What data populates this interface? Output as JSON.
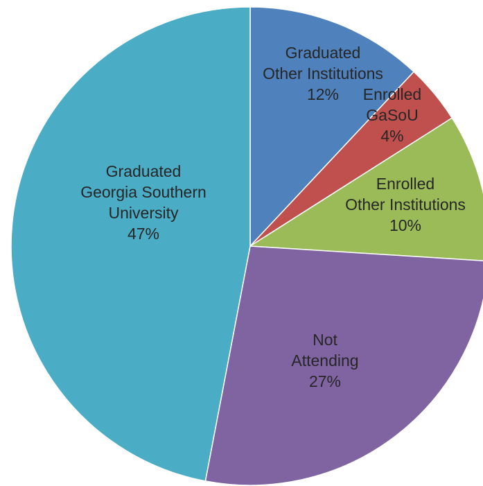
{
  "chart_data": {
    "type": "pie",
    "start_angle_deg": 0,
    "direction": "clockwise",
    "slices": [
      {
        "label_lines": [
          "Graduated",
          "Other Institutions"
        ],
        "value": 12,
        "value_label": "12%",
        "color": "#4f81bd"
      },
      {
        "label_lines": [
          "Enrolled",
          "GaSoU"
        ],
        "value": 4,
        "value_label": "4%",
        "color": "#c0504d"
      },
      {
        "label_lines": [
          "Enrolled",
          "Other Institutions"
        ],
        "value": 10,
        "value_label": "10%",
        "color": "#9bbb59"
      },
      {
        "label_lines": [
          "Not",
          "Attending"
        ],
        "value": 27,
        "value_label": "27%",
        "color": "#8064a2"
      },
      {
        "label_lines": [
          "Graduated",
          "Georgia Southern",
          "University"
        ],
        "value": 47,
        "value_label": "47%",
        "color": "#4bacc6"
      }
    ]
  }
}
